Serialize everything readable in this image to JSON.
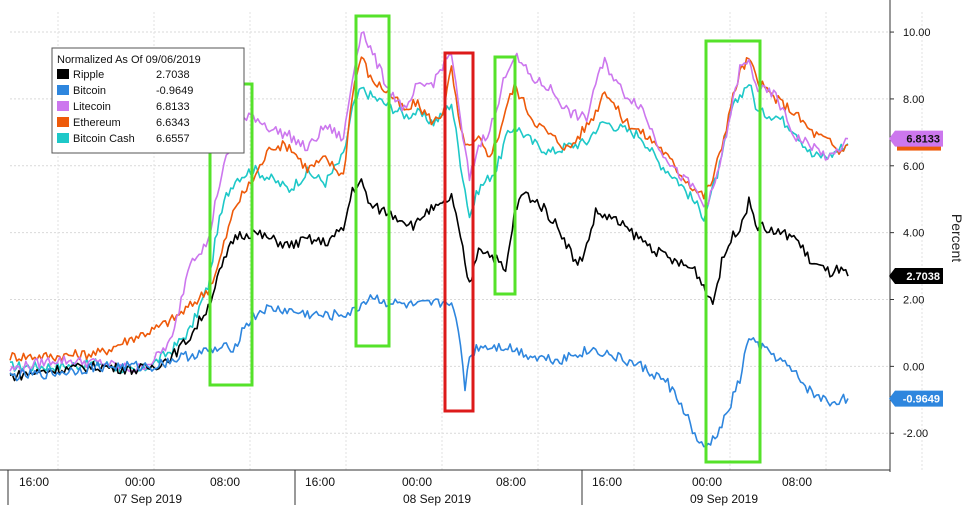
{
  "chart_data": {
    "type": "line",
    "y_axis": {
      "label": "Percent",
      "range": [
        -3.1,
        10.6
      ],
      "tick_values": [
        -2,
        0,
        2,
        4,
        6,
        8,
        10
      ],
      "tick_labels": [
        "-2.00",
        "0.00",
        "2.00",
        "4.00",
        "6.00",
        "8.00",
        "10.00"
      ]
    },
    "x_axis": {
      "time_labels": [
        "16:00",
        "00:00",
        "08:00",
        "16:00",
        "00:00",
        "08:00",
        "16:00",
        "00:00",
        "08:00"
      ],
      "date_labels": [
        "07 Sep 2019",
        "08 Sep 2019",
        "09 Sep 2019"
      ]
    },
    "legend": {
      "title": "Normalized As Of 09/06/2019",
      "placement": "top-left",
      "entries": [
        {
          "name": "Ripple",
          "value": "2.7038",
          "color": "#000000"
        },
        {
          "name": "Bitcoin",
          "value": "-0.9649",
          "color": "#2e86de"
        },
        {
          "name": "Litecoin",
          "value": "6.8133",
          "color": "#cc77ee"
        },
        {
          "name": "Ethereum",
          "value": "6.6343",
          "color": "#ee5a0a"
        },
        {
          "name": "Bitcoin Cash",
          "value": "6.6557",
          "color": "#1ec8c8"
        }
      ]
    },
    "last_value_badges": [
      {
        "text": "6.8133",
        "value": 6.8133,
        "bg": "#cc77ee",
        "fg": "#111111"
      },
      {
        "text": "2.7038",
        "value": 2.7038,
        "bg": "#000000",
        "fg": "#ffffff"
      },
      {
        "text": "-0.9649",
        "value": -0.9649,
        "bg": "#2e86de",
        "fg": "#ffffff"
      }
    ],
    "highlight_colors": {
      "green": "#55e22a",
      "red": "#dd1a1a"
    },
    "series": [
      {
        "name": "Ripple",
        "color": "#000000",
        "points": [
          [
            0,
            -0.3
          ],
          [
            5,
            -0.1
          ],
          [
            10,
            0
          ],
          [
            14,
            -0.1
          ],
          [
            16,
            0
          ],
          [
            18,
            0.3
          ],
          [
            20,
            0.9
          ],
          [
            22,
            1.8
          ],
          [
            23,
            2.6
          ],
          [
            24,
            3.3
          ],
          [
            25,
            3.9
          ],
          [
            27,
            4
          ],
          [
            29,
            3.8
          ],
          [
            31,
            3.6
          ],
          [
            33,
            3.8
          ],
          [
            35,
            3.7
          ],
          [
            37,
            4.1
          ],
          [
            38,
            5.3
          ],
          [
            39,
            5.5
          ],
          [
            40,
            4.8
          ],
          [
            42,
            4.6
          ],
          [
            45,
            4.2
          ],
          [
            46,
            4.6
          ],
          [
            48,
            4.8
          ],
          [
            49,
            5.1
          ],
          [
            50,
            3.8
          ],
          [
            51,
            2.4
          ],
          [
            52,
            3.6
          ],
          [
            54,
            3.2
          ],
          [
            55,
            2.8
          ],
          [
            56,
            4.6
          ],
          [
            57,
            5.2
          ],
          [
            59,
            4.8
          ],
          [
            61,
            4.1
          ],
          [
            63,
            3
          ],
          [
            64,
            3.6
          ],
          [
            65,
            4.6
          ],
          [
            67,
            4.4
          ],
          [
            70,
            3.8
          ],
          [
            72,
            3.4
          ],
          [
            74,
            3.1
          ],
          [
            76,
            2.9
          ],
          [
            77,
            2.4
          ],
          [
            78,
            1.9
          ],
          [
            79,
            3.1
          ],
          [
            80,
            3.8
          ],
          [
            81,
            4.2
          ],
          [
            82,
            4.9
          ],
          [
            83,
            4.2
          ],
          [
            85,
            4
          ],
          [
            87,
            3.9
          ],
          [
            89,
            3.1
          ],
          [
            91,
            2.8
          ],
          [
            92,
            2.9
          ],
          [
            93,
            2.7
          ]
        ]
      },
      {
        "name": "Bitcoin",
        "color": "#2e86de",
        "points": [
          [
            0,
            -0.3
          ],
          [
            5,
            -0.2
          ],
          [
            10,
            0
          ],
          [
            14,
            0
          ],
          [
            16,
            0
          ],
          [
            18,
            0.2
          ],
          [
            21,
            0.4
          ],
          [
            23,
            0.5
          ],
          [
            25,
            0.6
          ],
          [
            26,
            1.2
          ],
          [
            28,
            1.7
          ],
          [
            30,
            1.7
          ],
          [
            32,
            1.6
          ],
          [
            35,
            1.5
          ],
          [
            38,
            1.6
          ],
          [
            40,
            2.1
          ],
          [
            42,
            1.9
          ],
          [
            45,
            1.8
          ],
          [
            48,
            1.9
          ],
          [
            49,
            2
          ],
          [
            50,
            0.6
          ],
          [
            50.5,
            -0.6
          ],
          [
            51,
            0.3
          ],
          [
            52,
            0.6
          ],
          [
            55,
            0.6
          ],
          [
            58,
            0.3
          ],
          [
            61,
            0.2
          ],
          [
            63,
            0.4
          ],
          [
            65,
            0.5
          ],
          [
            67,
            0.3
          ],
          [
            70,
            0
          ],
          [
            73,
            -0.5
          ],
          [
            75,
            -1.4
          ],
          [
            76,
            -2.1
          ],
          [
            77,
            -2.5
          ],
          [
            78,
            -2.2
          ],
          [
            79,
            -1.8
          ],
          [
            80,
            -1.1
          ],
          [
            81,
            -0.4
          ],
          [
            82,
            0.9
          ],
          [
            83,
            0.6
          ],
          [
            85,
            0.3
          ],
          [
            87,
            -0.2
          ],
          [
            89,
            -0.8
          ],
          [
            91,
            -1.1
          ],
          [
            92,
            -1
          ],
          [
            93,
            -0.96
          ]
        ]
      },
      {
        "name": "Litecoin",
        "color": "#cc77ee",
        "points": [
          [
            0,
            -0.1
          ],
          [
            5,
            0.2
          ],
          [
            10,
            0.1
          ],
          [
            14,
            -0.1
          ],
          [
            16,
            0.2
          ],
          [
            18,
            0.8
          ],
          [
            20,
            3.2
          ],
          [
            22,
            3.7
          ],
          [
            23,
            5.2
          ],
          [
            24,
            6.2
          ],
          [
            25,
            7.2
          ],
          [
            27,
            7.5
          ],
          [
            29,
            7.1
          ],
          [
            31,
            6.9
          ],
          [
            33,
            6.5
          ],
          [
            35,
            7.2
          ],
          [
            37,
            6.8
          ],
          [
            38,
            8.6
          ],
          [
            39,
            10.1
          ],
          [
            40,
            9.5
          ],
          [
            42,
            8.3
          ],
          [
            44,
            7.6
          ],
          [
            45,
            8.3
          ],
          [
            47,
            8.5
          ],
          [
            48,
            9
          ],
          [
            49,
            9.4
          ],
          [
            50,
            7.3
          ],
          [
            51,
            5.6
          ],
          [
            52,
            6.6
          ],
          [
            53,
            7
          ],
          [
            54,
            7.6
          ],
          [
            55,
            8.8
          ],
          [
            56,
            9.3
          ],
          [
            58,
            8.6
          ],
          [
            60,
            8.3
          ],
          [
            62,
            7.6
          ],
          [
            64,
            7.4
          ],
          [
            65,
            8.5
          ],
          [
            66,
            9.1
          ],
          [
            68,
            8.2
          ],
          [
            70,
            7.8
          ],
          [
            72,
            6.6
          ],
          [
            74,
            5.8
          ],
          [
            76,
            5.3
          ],
          [
            77,
            4.8
          ],
          [
            78,
            5.2
          ],
          [
            79,
            6.3
          ],
          [
            80,
            7.6
          ],
          [
            81,
            8.9
          ],
          [
            82,
            9.1
          ],
          [
            83,
            8.3
          ],
          [
            85,
            8.1
          ],
          [
            87,
            6.9
          ],
          [
            89,
            6.6
          ],
          [
            91,
            6.2
          ],
          [
            92,
            6.5
          ],
          [
            93,
            6.81
          ]
        ]
      },
      {
        "name": "Ethereum",
        "color": "#ee5a0a",
        "points": [
          [
            0,
            0.3
          ],
          [
            5,
            0.3
          ],
          [
            10,
            0.4
          ],
          [
            14,
            0.9
          ],
          [
            16,
            1.1
          ],
          [
            18,
            1.4
          ],
          [
            20,
            1.8
          ],
          [
            22,
            2.3
          ],
          [
            23,
            2.9
          ],
          [
            24,
            3.9
          ],
          [
            25,
            4.8
          ],
          [
            27,
            5.6
          ],
          [
            29,
            6.6
          ],
          [
            31,
            6.6
          ],
          [
            33,
            5.9
          ],
          [
            35,
            6.2
          ],
          [
            37,
            5.7
          ],
          [
            38,
            8.2
          ],
          [
            39,
            9.3
          ],
          [
            40,
            8.6
          ],
          [
            42,
            8.2
          ],
          [
            44,
            7.6
          ],
          [
            45,
            7.9
          ],
          [
            47,
            7.3
          ],
          [
            48,
            7.6
          ],
          [
            49,
            8.9
          ],
          [
            50,
            7
          ],
          [
            51,
            6.5
          ],
          [
            52,
            6.8
          ],
          [
            53,
            6.3
          ],
          [
            54,
            6.7
          ],
          [
            55,
            7.7
          ],
          [
            56,
            8.4
          ],
          [
            58,
            7.4
          ],
          [
            60,
            6.9
          ],
          [
            62,
            6.5
          ],
          [
            64,
            7.2
          ],
          [
            65,
            7.6
          ],
          [
            66,
            8.3
          ],
          [
            68,
            7.4
          ],
          [
            70,
            7
          ],
          [
            72,
            6.6
          ],
          [
            74,
            5.9
          ],
          [
            76,
            5.3
          ],
          [
            77,
            5.1
          ],
          [
            78,
            5.6
          ],
          [
            79,
            6.6
          ],
          [
            80,
            7.8
          ],
          [
            81,
            8.8
          ],
          [
            82,
            9.2
          ],
          [
            83,
            8.5
          ],
          [
            85,
            8
          ],
          [
            87,
            7.6
          ],
          [
            89,
            7
          ],
          [
            91,
            6.7
          ],
          [
            92,
            6.4
          ],
          [
            93,
            6.63
          ]
        ]
      },
      {
        "name": "Bitcoin Cash",
        "color": "#1ec8c8",
        "points": [
          [
            0,
            0
          ],
          [
            5,
            0
          ],
          [
            10,
            0.1
          ],
          [
            14,
            -0.2
          ],
          [
            16,
            0.1
          ],
          [
            18,
            0.5
          ],
          [
            20,
            1.1
          ],
          [
            22,
            2.4
          ],
          [
            23,
            4.1
          ],
          [
            24,
            5.1
          ],
          [
            25,
            5.6
          ],
          [
            27,
            5.9
          ],
          [
            29,
            5.6
          ],
          [
            31,
            5.3
          ],
          [
            33,
            5.8
          ],
          [
            35,
            5.5
          ],
          [
            37,
            6.3
          ],
          [
            38,
            7.7
          ],
          [
            39,
            8.3
          ],
          [
            40,
            8.1
          ],
          [
            42,
            7.8
          ],
          [
            44,
            7.5
          ],
          [
            45,
            7.6
          ],
          [
            47,
            7.3
          ],
          [
            48,
            7.5
          ],
          [
            49,
            7.9
          ],
          [
            50,
            6.1
          ],
          [
            51,
            4.5
          ],
          [
            52,
            5.3
          ],
          [
            53,
            5.6
          ],
          [
            54,
            5.9
          ],
          [
            55,
            6.8
          ],
          [
            56,
            7.2
          ],
          [
            58,
            6.7
          ],
          [
            60,
            6.4
          ],
          [
            62,
            6.6
          ],
          [
            64,
            6.7
          ],
          [
            65,
            7.1
          ],
          [
            66,
            7.3
          ],
          [
            68,
            7.1
          ],
          [
            70,
            6.9
          ],
          [
            72,
            6.1
          ],
          [
            74,
            5.6
          ],
          [
            76,
            4.9
          ],
          [
            77,
            4.5
          ],
          [
            78,
            5.3
          ],
          [
            79,
            6.2
          ],
          [
            80,
            7.6
          ],
          [
            81,
            8.1
          ],
          [
            82,
            8.5
          ],
          [
            83,
            7.6
          ],
          [
            85,
            7.5
          ],
          [
            87,
            7.1
          ],
          [
            89,
            6.3
          ],
          [
            91,
            6.3
          ],
          [
            92,
            6.5
          ],
          [
            93,
            6.66
          ]
        ]
      }
    ]
  }
}
